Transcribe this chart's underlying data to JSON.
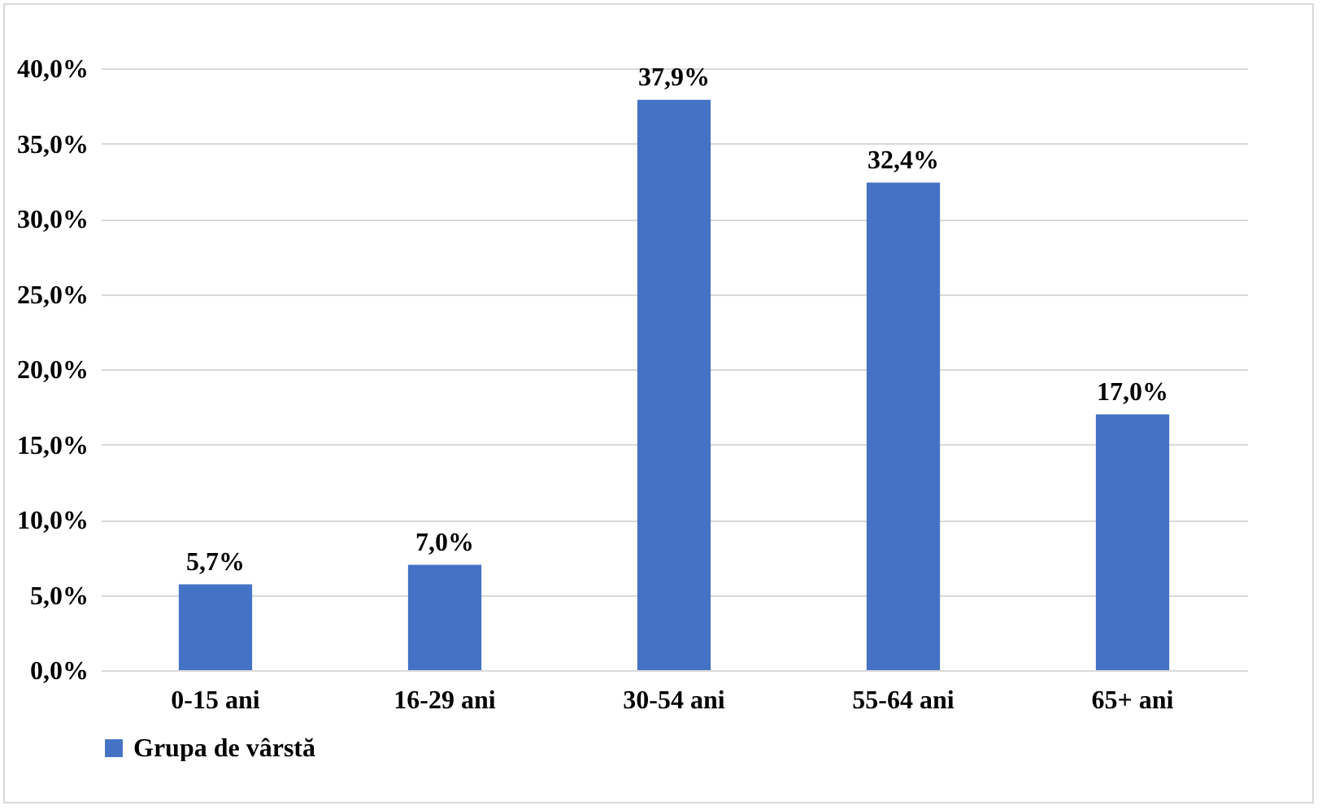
{
  "chart_data": {
    "type": "bar",
    "categories": [
      "0-15 ani",
      "16-29 ani",
      "30-54 ani",
      "55-64 ani",
      "65+ ani"
    ],
    "series": [
      {
        "name": "Grupa de vârstă",
        "color": "#4472c4",
        "values": [
          5.7,
          7.0,
          37.9,
          32.4,
          17.0
        ],
        "value_labels": [
          "5,7%",
          "7,0%",
          "37,9%",
          "32,4%",
          "17,0%"
        ]
      }
    ],
    "ylim": [
      0,
      40
    ],
    "yticks": [
      {
        "value": 0,
        "label": "0,0%"
      },
      {
        "value": 5,
        "label": "5,0%"
      },
      {
        "value": 10,
        "label": "10,0%"
      },
      {
        "value": 15,
        "label": "15,0%"
      },
      {
        "value": 20,
        "label": "20,0%"
      },
      {
        "value": 25,
        "label": "25,0%"
      },
      {
        "value": 30,
        "label": "30,0%"
      },
      {
        "value": 35,
        "label": "35,0%"
      },
      {
        "value": 40,
        "label": "40,0%"
      }
    ],
    "grid": "y",
    "legend": "bottom"
  }
}
